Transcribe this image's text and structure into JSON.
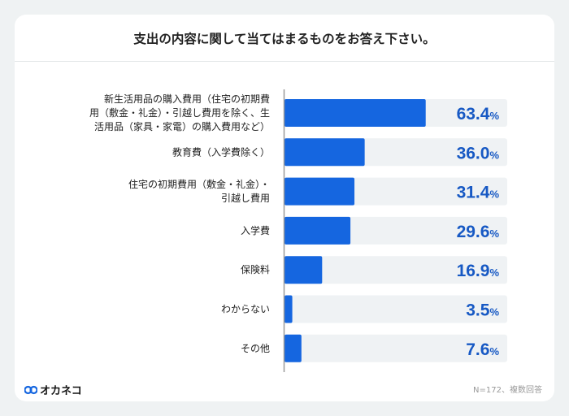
{
  "chart_data": {
    "type": "bar",
    "orientation": "horizontal",
    "title": "支出の内容に関して当てはまるものをお答え下さい。",
    "categories": [
      "新生活用品の購入費用（住宅の初期費|用（敷金・礼金）・引越し費用を除く、生|活用品（家具・家電）の購入費用など）",
      "教育費（入学費除く）",
      "住宅の初期費用（敷金・礼金）・|引越し費用",
      "入学費",
      "保険料",
      "わからない",
      "その他"
    ],
    "values": [
      63.4,
      36.0,
      31.4,
      29.6,
      16.9,
      3.5,
      7.6
    ],
    "labels": [
      "63.4",
      "36.0",
      "31.4",
      "29.6",
      "16.9",
      "3.5",
      "7.6"
    ],
    "unit": "%",
    "xlim": [
      0,
      100
    ],
    "bar_color": "#1566e0",
    "track_color": "#eff2f4",
    "label_color": "#1759c4"
  },
  "footer": {
    "brand": "オカネコ",
    "note": "N=172、複数回答"
  }
}
